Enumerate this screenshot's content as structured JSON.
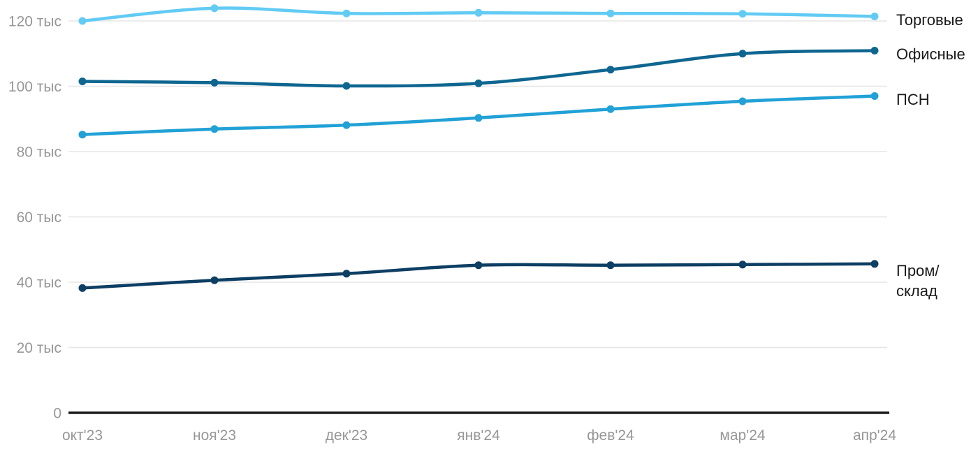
{
  "chart_data": {
    "type": "line",
    "title": "",
    "xlabel": "",
    "ylabel": "",
    "unit": "тыс",
    "categories": [
      "окт'23",
      "ноя'23",
      "дек'23",
      "янв'24",
      "фев'24",
      "мар'24",
      "апр'24"
    ],
    "series": [
      {
        "name": "Торговые",
        "color": "#62CBF4",
        "values": [
          120.0,
          123.9,
          122.3,
          122.5,
          122.3,
          122.2,
          121.4
        ]
      },
      {
        "name": "Офисные",
        "color": "#0E6690",
        "values": [
          101.5,
          101.1,
          100.1,
          100.9,
          105.1,
          110.0,
          110.9
        ]
      },
      {
        "name": "ПСН",
        "color": "#21A1D6",
        "values": [
          85.2,
          86.9,
          88.1,
          90.3,
          93.0,
          95.4,
          97.0
        ]
      },
      {
        "name": "Пром/склад",
        "label_lines": [
          "Пром/",
          "склад"
        ],
        "color": "#0D3E63",
        "values": [
          38.2,
          40.6,
          42.6,
          45.2,
          45.2,
          45.4,
          45.6
        ]
      }
    ],
    "yticks": [
      {
        "value": 0,
        "label": "0"
      },
      {
        "value": 20,
        "label": "20 тыс"
      },
      {
        "value": 40,
        "label": "40 тыс"
      },
      {
        "value": 60,
        "label": "60 тыс"
      },
      {
        "value": 80,
        "label": "80 тыс"
      },
      {
        "value": 100,
        "label": "100 тыс"
      },
      {
        "value": 120,
        "label": "120 тыс"
      }
    ],
    "ylim": [
      0,
      126
    ],
    "grid": "horizontal-only",
    "legend_position": "right-of-line-ends",
    "colors": {
      "gridline": "#E6E6E6",
      "axis_line": "#1A1A1A",
      "tick_text": "#979797",
      "legend_text": "#1A1A1A",
      "background": "#FFFFFF"
    }
  }
}
